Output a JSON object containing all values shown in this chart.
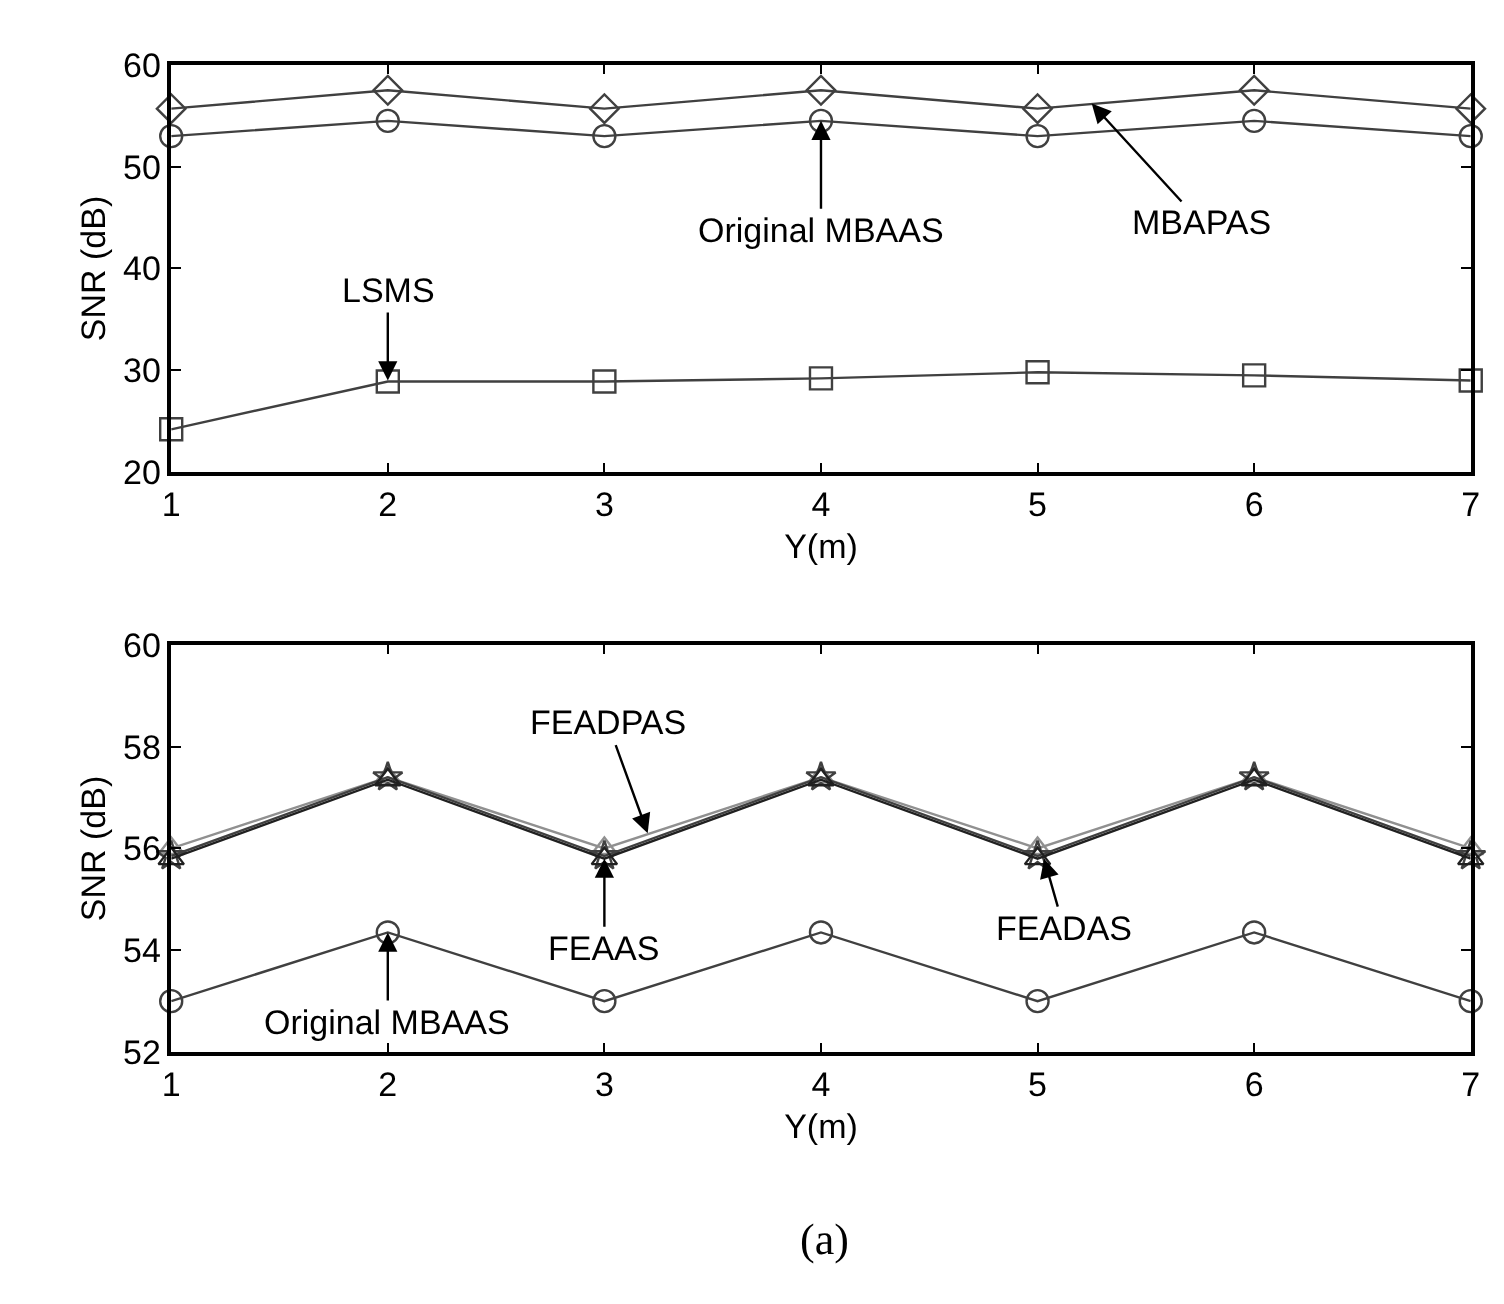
{
  "chart_data": [
    {
      "type": "line",
      "xlabel": "Y(m)",
      "ylabel": "SNR (dB)",
      "x": [
        1,
        2,
        3,
        4,
        5,
        6,
        7
      ],
      "xlim": [
        1,
        7
      ],
      "xticks": [
        1,
        2,
        3,
        4,
        5,
        6,
        7
      ],
      "ylim": [
        20,
        60
      ],
      "yticks": [
        20,
        30,
        40,
        50,
        60
      ],
      "series": [
        {
          "color": "#404040",
          "marker": "diamond",
          "values": [
            55.7,
            57.5,
            55.7,
            57.5,
            55.7,
            57.5,
            55.7
          ]
        },
        {
          "color": "#404040",
          "marker": "circle",
          "values": [
            53.0,
            54.5,
            53.0,
            54.5,
            53.0,
            54.5,
            53.0
          ]
        },
        {
          "color": "#404040",
          "marker": "square",
          "values": [
            24.2,
            28.9,
            28.9,
            29.2,
            29.8,
            29.5,
            29.0
          ]
        }
      ],
      "annotations": [
        {
          "text": "LSMS",
          "x": 2,
          "y": 29
        },
        {
          "text": "Original MBAAS",
          "x": 4,
          "y": 54.5
        },
        {
          "text": "MBAPAS",
          "x": 5.25,
          "y": 56.2
        }
      ]
    },
    {
      "type": "line",
      "xlabel": "Y(m)",
      "ylabel": "SNR (dB)",
      "x": [
        1,
        2,
        3,
        4,
        5,
        6,
        7
      ],
      "xlim": [
        1,
        7
      ],
      "xticks": [
        1,
        2,
        3,
        4,
        5,
        6,
        7
      ],
      "ylim": [
        52,
        60
      ],
      "yticks": [
        52,
        54,
        56,
        58,
        60
      ],
      "series": [
        {
          "color": "#909090",
          "marker": "triangle",
          "values": [
            56.0,
            57.4,
            56.0,
            57.4,
            56.0,
            57.4,
            56.0
          ]
        },
        {
          "color": "#404040",
          "marker": "star",
          "values": [
            55.85,
            57.4,
            55.85,
            57.4,
            55.85,
            57.4,
            55.85
          ]
        },
        {
          "color": "#202020",
          "marker": "triangle",
          "values": [
            55.8,
            57.35,
            55.8,
            57.35,
            55.8,
            57.35,
            55.8
          ]
        },
        {
          "color": "#404040",
          "marker": "circle",
          "values": [
            53.0,
            54.35,
            53.0,
            54.35,
            53.0,
            54.35,
            53.0
          ]
        }
      ],
      "annotations": [
        {
          "text": "FEADPAS",
          "x": 3.2,
          "y": 56.3
        },
        {
          "text": "FEAAS",
          "x": 3,
          "y": 55.8
        },
        {
          "text": "FEADAS",
          "x": 5.03,
          "y": 55.8
        },
        {
          "text": "Original MBAAS",
          "x": 2,
          "y": 54.35
        },
        "(a)"
      ]
    }
  ]
}
